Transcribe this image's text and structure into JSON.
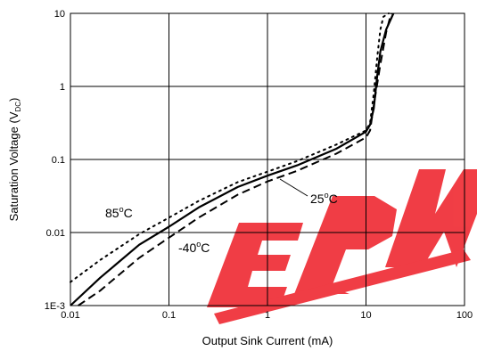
{
  "chart_data": {
    "type": "line",
    "xlabel": "Output Sink Current (mA)",
    "ylabel_main": "Saturation Voltage (V",
    "ylabel_sub": "DC",
    "ylabel_close": ")",
    "x_scale": "log",
    "y_scale": "log",
    "xlim": [
      0.01,
      100
    ],
    "ylim": [
      0.001,
      10
    ],
    "x_ticks": [
      0.01,
      0.1,
      1,
      10,
      100
    ],
    "x_tick_labels": [
      "0.01",
      "0.1",
      "1",
      "10",
      "100"
    ],
    "y_ticks": [
      0.001,
      0.01,
      0.1,
      1,
      10
    ],
    "y_tick_labels": [
      "1E-3",
      "0.01",
      "0.1",
      "1",
      "10"
    ],
    "grid": true,
    "series": [
      {
        "name": "25°C",
        "label_value": "25",
        "style": "solid",
        "x": [
          0.01,
          0.02,
          0.05,
          0.1,
          0.2,
          0.5,
          1,
          2,
          5,
          10,
          11,
          12,
          13,
          14,
          16,
          19
        ],
        "y": [
          0.001,
          0.0024,
          0.0068,
          0.012,
          0.022,
          0.042,
          0.06,
          0.083,
          0.14,
          0.24,
          0.3,
          0.5,
          1.4,
          3,
          6,
          10
        ]
      },
      {
        "name": "85°C",
        "label_value": "85",
        "style": "dotted",
        "x": [
          0.01,
          0.02,
          0.05,
          0.1,
          0.2,
          0.5,
          1,
          2,
          5,
          10,
          11,
          12,
          13,
          14,
          15,
          17
        ],
        "y": [
          0.0021,
          0.0042,
          0.0095,
          0.016,
          0.027,
          0.049,
          0.068,
          0.095,
          0.16,
          0.25,
          0.32,
          0.8,
          2.5,
          6,
          9,
          10
        ]
      },
      {
        "name": "-40°C",
        "label_value": "-40",
        "style": "dashed",
        "x": [
          0.012,
          0.02,
          0.05,
          0.1,
          0.2,
          0.5,
          1,
          2,
          5,
          10,
          11,
          12,
          14,
          16,
          18
        ],
        "y": [
          0.001,
          0.0016,
          0.0045,
          0.0085,
          0.016,
          0.033,
          0.05,
          0.07,
          0.12,
          0.2,
          0.25,
          0.55,
          2,
          5.5,
          10
        ]
      }
    ],
    "annotations": [
      {
        "text": "85",
        "unit": "C",
        "target": "85°C"
      },
      {
        "text": "-40",
        "unit": "C",
        "target": "-40°C"
      },
      {
        "text": "25",
        "unit": "C",
        "target": "25°C"
      }
    ]
  },
  "watermark": {
    "text": "EPW",
    "color": "#ee1c25"
  }
}
